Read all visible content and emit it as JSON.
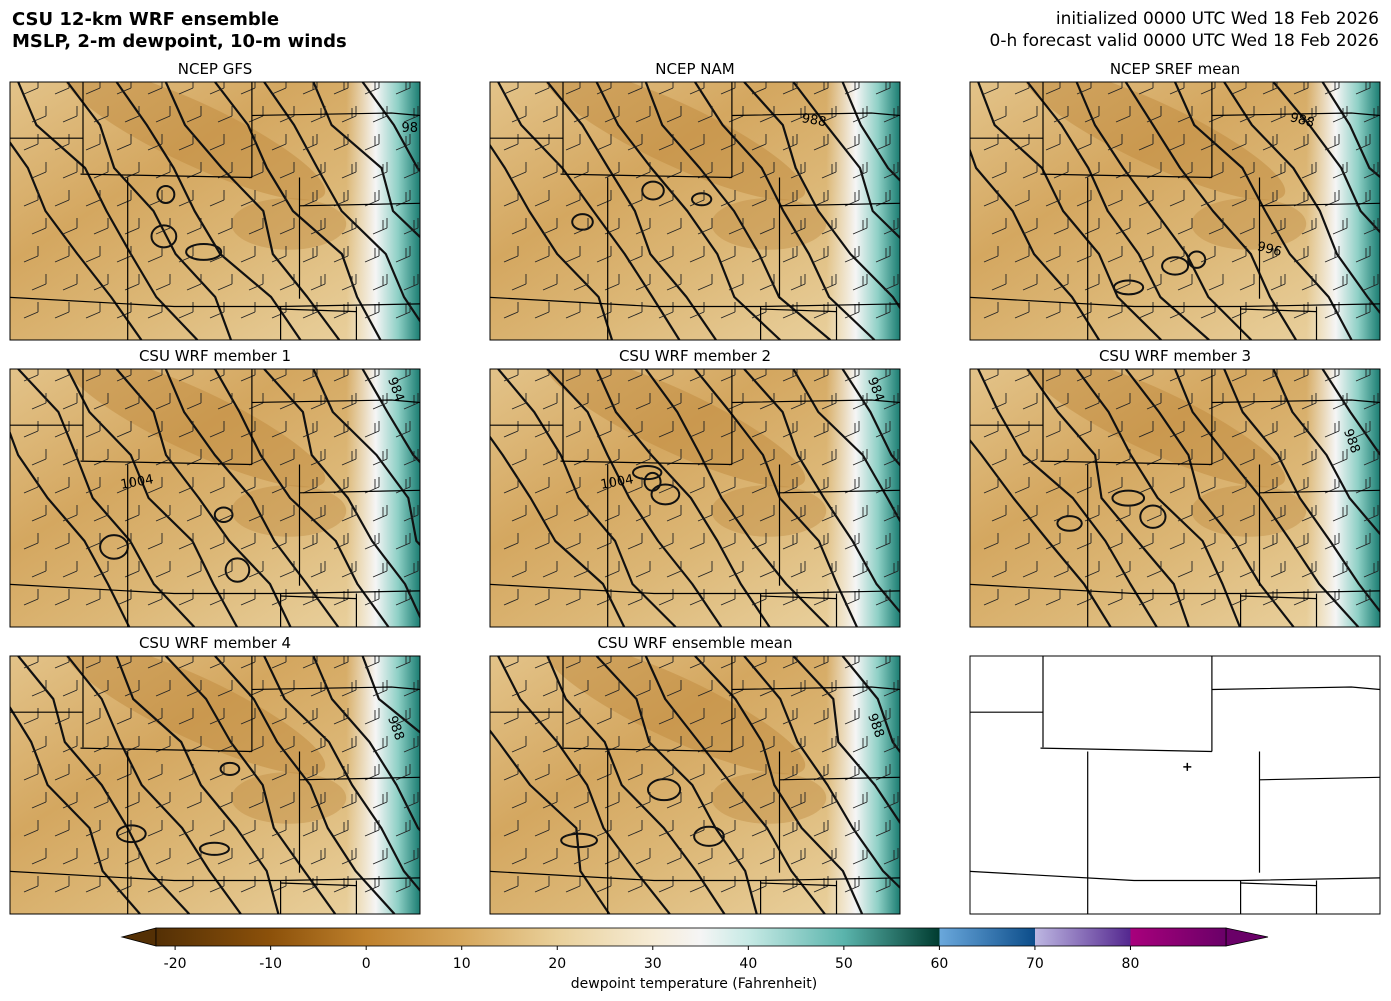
{
  "header": {
    "title_lines": [
      "CSU 12-km WRF ensemble",
      "MSLP, 2-m dewpoint, 10-m winds"
    ],
    "init": "initialized 0000 UTC Wed 18 Feb 2026",
    "valid": "0-h forecast valid 0000 UTC Wed 18 Feb 2026"
  },
  "panels": [
    {
      "title": "NCEP GFS",
      "contour_labels": [
        "98"
      ]
    },
    {
      "title": "NCEP NAM",
      "contour_labels": [
        "988"
      ]
    },
    {
      "title": "NCEP SREF mean",
      "contour_labels": [
        "988",
        "996"
      ]
    },
    {
      "title": "CSU WRF member 1",
      "contour_labels": [
        "984",
        "1004"
      ]
    },
    {
      "title": "CSU WRF member 2",
      "contour_labels": [
        "984",
        "1004"
      ]
    },
    {
      "title": "CSU WRF member 3",
      "contour_labels": [
        "988"
      ]
    },
    {
      "title": "CSU WRF member 4",
      "contour_labels": [
        "988"
      ]
    },
    {
      "title": "CSU WRF ensemble mean",
      "contour_labels": [
        "988"
      ]
    }
  ],
  "colorbar": {
    "label": "dewpoint temperature (Fahrenheit)",
    "lim": [
      -22,
      90
    ],
    "ticks": [
      -20,
      -10,
      0,
      10,
      20,
      30,
      40,
      50,
      60,
      70,
      80
    ],
    "color_stops": [
      {
        "value": -22,
        "color": "#543005"
      },
      {
        "value": -10,
        "color": "#8c510a"
      },
      {
        "value": 0,
        "color": "#bf812d"
      },
      {
        "value": 10,
        "color": "#d6a75c"
      },
      {
        "value": 20,
        "color": "#e9d09a"
      },
      {
        "value": 30,
        "color": "#f6ecd6"
      },
      {
        "value": 35,
        "color": "#f5f5f5"
      },
      {
        "value": 40,
        "color": "#c7eae5"
      },
      {
        "value": 50,
        "color": "#5ab4ac"
      },
      {
        "value": 60,
        "color": "#003c30"
      },
      {
        "value": 60,
        "color": "#6aa8dc"
      },
      {
        "value": 70,
        "color": "#0c4d8a"
      },
      {
        "value": 70,
        "color": "#bdb7e2"
      },
      {
        "value": 80,
        "color": "#54278f"
      },
      {
        "value": 80,
        "color": "#a8007c"
      },
      {
        "value": 90,
        "color": "#6a0068"
      }
    ]
  }
}
